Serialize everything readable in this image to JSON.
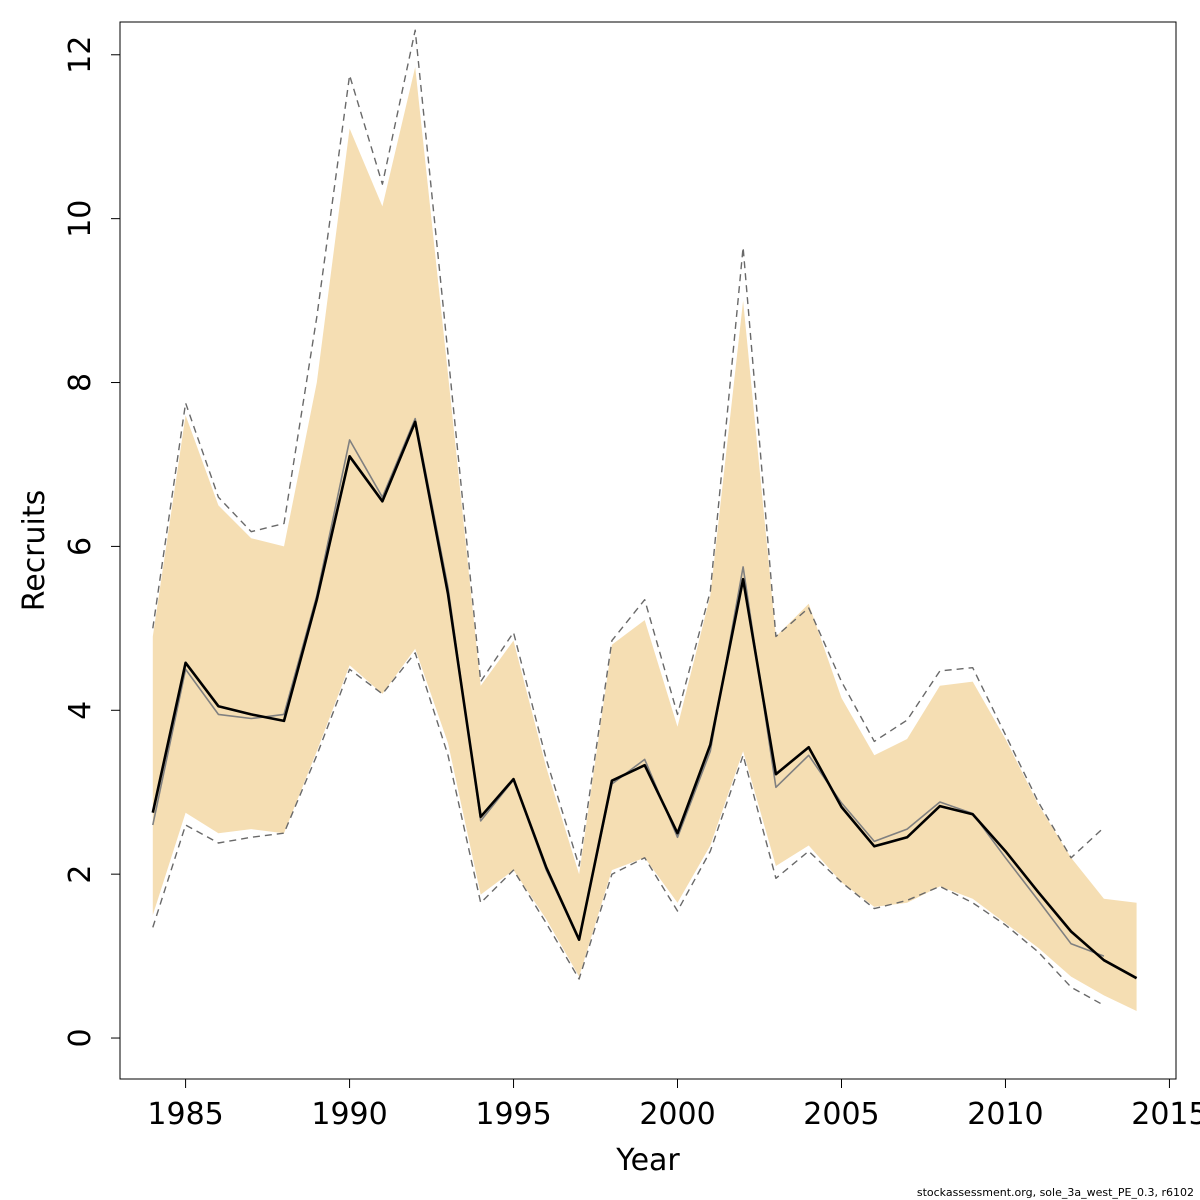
{
  "chart_data": {
    "type": "line",
    "xlabel": "Year",
    "ylabel": "Recruits",
    "xlim": [
      1983,
      2015.2
    ],
    "ylim": [
      -0.5,
      12.4
    ],
    "xticks": [
      1985,
      1990,
      1995,
      2000,
      2005,
      2010,
      2015
    ],
    "yticks": [
      0,
      2,
      4,
      6,
      8,
      10,
      12
    ],
    "grid": false,
    "colors": {
      "band": "#f5deb3",
      "main_line": "#000000",
      "secondary_line": "#808080",
      "dashed_bounds": "#696969"
    },
    "band": {
      "x": [
        1984,
        1985,
        1986,
        1987,
        1988,
        1989,
        1990,
        1991,
        1992,
        1993,
        1994,
        1995,
        1996,
        1997,
        1998,
        1999,
        2000,
        2001,
        2002,
        2003,
        2004,
        2005,
        2006,
        2007,
        2008,
        2009,
        2010,
        2011,
        2012,
        2013,
        2014
      ],
      "lower": [
        1.5,
        2.75,
        2.5,
        2.55,
        2.5,
        3.5,
        4.55,
        4.2,
        4.75,
        3.6,
        1.75,
        2.05,
        1.45,
        0.75,
        2.05,
        2.2,
        1.65,
        2.35,
        3.5,
        2.1,
        2.35,
        1.9,
        1.6,
        1.65,
        1.85,
        1.7,
        1.4,
        1.1,
        0.75,
        0.52,
        0.33
      ],
      "upper": [
        4.9,
        7.6,
        6.5,
        6.1,
        6.0,
        8.0,
        11.1,
        10.15,
        11.85,
        8.1,
        4.3,
        4.85,
        3.3,
        2.0,
        4.8,
        5.1,
        3.8,
        5.4,
        9.0,
        4.9,
        5.3,
        4.15,
        3.45,
        3.65,
        4.3,
        4.35,
        3.65,
        2.85,
        2.2,
        1.7,
        1.65
      ]
    },
    "series": [
      {
        "x": [
          1984,
          1985,
          1986,
          1987,
          1988,
          1989,
          1990,
          1991,
          1992,
          1993,
          1994,
          1995,
          1996,
          1997,
          1998,
          1999,
          2000,
          2001,
          2002,
          2003,
          2004,
          2005,
          2006,
          2007,
          2008,
          2009,
          2010,
          2011,
          2012,
          2013,
          2014
        ],
        "values": [
          2.75,
          4.58,
          4.05,
          3.95,
          3.87,
          5.35,
          7.1,
          6.55,
          7.52,
          5.42,
          2.7,
          3.16,
          2.08,
          1.2,
          3.14,
          3.33,
          2.5,
          3.58,
          5.6,
          3.22,
          3.55,
          2.82,
          2.34,
          2.45,
          2.83,
          2.73,
          2.28,
          1.78,
          1.3,
          0.95,
          0.73
        ],
        "style": "solid-thick"
      },
      {
        "x": [
          1984,
          1985,
          1986,
          1987,
          1988,
          1989,
          1990,
          1991,
          1992,
          1993,
          1994,
          1995,
          1996,
          1997,
          1998,
          1999,
          2000,
          2001,
          2002,
          2003,
          2004,
          2005,
          2006,
          2007,
          2008,
          2009,
          2010,
          2011,
          2012,
          2013
        ],
        "values": [
          2.6,
          4.5,
          3.95,
          3.9,
          3.95,
          5.4,
          7.3,
          6.6,
          7.56,
          5.5,
          2.65,
          3.15,
          2.05,
          1.2,
          3.1,
          3.4,
          2.45,
          3.5,
          5.75,
          3.06,
          3.45,
          2.87,
          2.4,
          2.55,
          2.88,
          2.74,
          2.2,
          1.68,
          1.15,
          1.0
        ],
        "style": "solid-thin"
      },
      {
        "x": [
          1984,
          1985,
          1986,
          1987,
          1988,
          1989,
          1990,
          1991,
          1992,
          1993,
          1994,
          1995,
          1996,
          1997,
          1998,
          1999,
          2000,
          2001,
          2002,
          2003,
          2004,
          2005,
          2006,
          2007,
          2008,
          2009,
          2010,
          2011,
          2012,
          2013
        ],
        "values": [
          5.0,
          7.75,
          6.6,
          6.18,
          6.28,
          8.8,
          11.75,
          10.42,
          12.3,
          8.35,
          4.35,
          4.95,
          3.4,
          2.1,
          4.85,
          5.35,
          3.95,
          5.45,
          9.65,
          4.9,
          5.25,
          4.35,
          3.62,
          3.88,
          4.48,
          4.52,
          3.7,
          2.88,
          2.2,
          2.57
        ],
        "style": "dashed-upper"
      },
      {
        "x": [
          1984,
          1985,
          1986,
          1987,
          1988,
          1989,
          1990,
          1991,
          1992,
          1993,
          1994,
          1995,
          1996,
          1997,
          1998,
          1999,
          2000,
          2001,
          2002,
          2003,
          2004,
          2005,
          2006,
          2007,
          2008,
          2009,
          2010,
          2011,
          2012,
          2013
        ],
        "values": [
          1.35,
          2.6,
          2.38,
          2.45,
          2.5,
          3.45,
          4.5,
          4.2,
          4.7,
          3.45,
          1.65,
          2.05,
          1.4,
          0.72,
          2.0,
          2.2,
          1.55,
          2.28,
          3.45,
          1.95,
          2.28,
          1.9,
          1.58,
          1.68,
          1.85,
          1.65,
          1.38,
          1.05,
          0.62,
          0.4
        ],
        "style": "dashed-lower"
      }
    ]
  },
  "footnote": "stockassessment.org, sole_3a_west_PE_0.3, r6102"
}
